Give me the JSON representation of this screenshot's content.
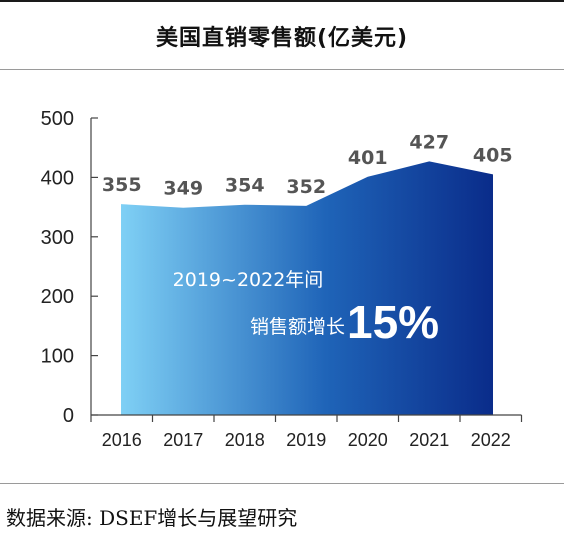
{
  "title": "美国直销零售额(亿美元)",
  "source": "数据来源: DSEF增长与展望研究",
  "chart_data": {
    "type": "area",
    "title": "美国直销零售额(亿美元)",
    "categories": [
      "2016",
      "2017",
      "2018",
      "2019",
      "2020",
      "2021",
      "2022"
    ],
    "values": [
      355,
      349,
      354,
      352,
      401,
      427,
      405
    ],
    "data_labels": [
      "355",
      "349",
      "354",
      "352",
      "401",
      "427",
      "405"
    ],
    "y_ticks": [
      "0",
      "100",
      "200",
      "300",
      "400",
      "500"
    ],
    "ylim": [
      0,
      500
    ],
    "xlabel": "",
    "ylabel": "",
    "grid": false,
    "annotation": {
      "line1": "2019~2022年间",
      "line2_prefix": "销售额增长",
      "line2_value": "15%"
    },
    "colors": {
      "gradient_start": "#7fd0f5",
      "gradient_mid": "#1f64b8",
      "gradient_end": "#0a2c8a",
      "label": "#555555",
      "axis": "#444444"
    }
  }
}
